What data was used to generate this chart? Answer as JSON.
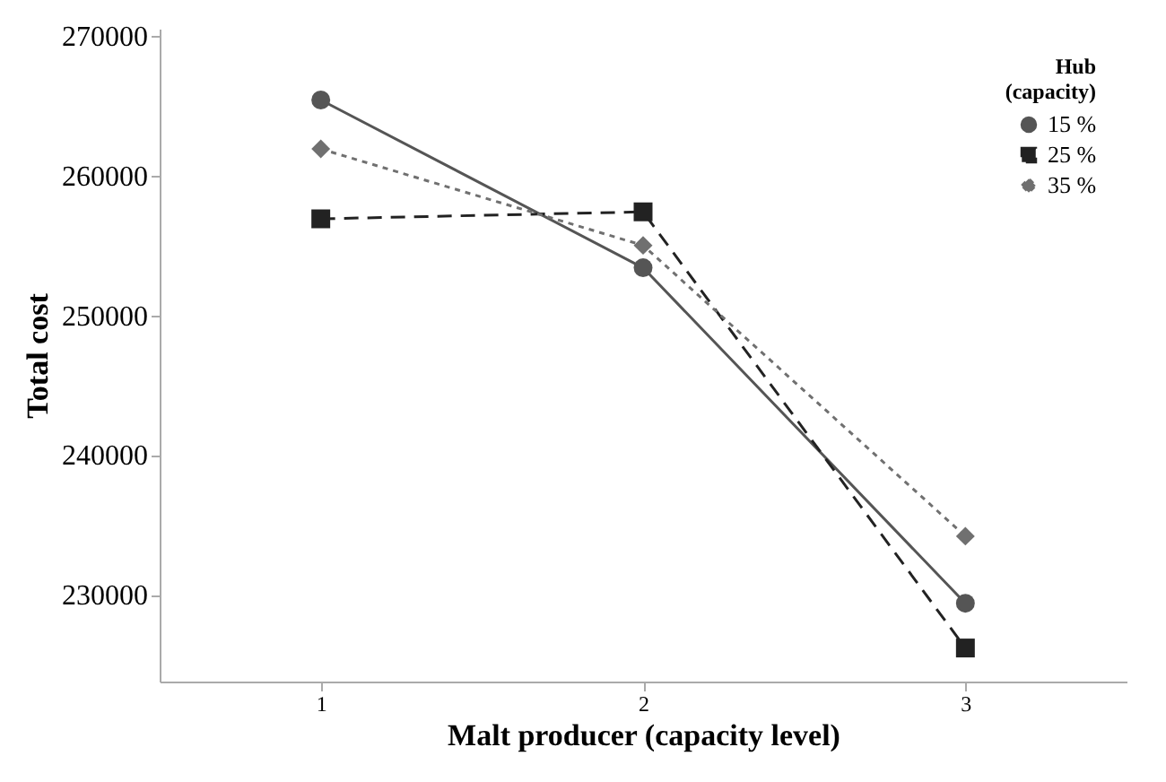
{
  "chart_data": {
    "type": "line",
    "xlabel": "Malt producer (capacity level)",
    "ylabel": "Total cost",
    "legend_title": "Hub (capacity)",
    "legend": "top right",
    "grid": false,
    "x": [
      1,
      2,
      3
    ],
    "xlim": [
      0.5,
      3.5
    ],
    "xticks": [
      1,
      2,
      3
    ],
    "ylim": [
      223800,
      270500
    ],
    "yticks": [
      230000,
      240000,
      250000,
      260000,
      270000
    ],
    "series": [
      {
        "name": "15 %",
        "color": "#555555",
        "marker": "circle",
        "line_style": "solid",
        "values": [
          265400,
          253400,
          229400
        ]
      },
      {
        "name": "25 %",
        "color": "#222222",
        "marker": "square",
        "line_style": "dashed",
        "values": [
          256900,
          257400,
          226200
        ]
      },
      {
        "name": "35 %",
        "color": "#707070",
        "marker": "diamond",
        "line_style": "dotted",
        "values": [
          261900,
          255000,
          234200
        ]
      }
    ]
  }
}
